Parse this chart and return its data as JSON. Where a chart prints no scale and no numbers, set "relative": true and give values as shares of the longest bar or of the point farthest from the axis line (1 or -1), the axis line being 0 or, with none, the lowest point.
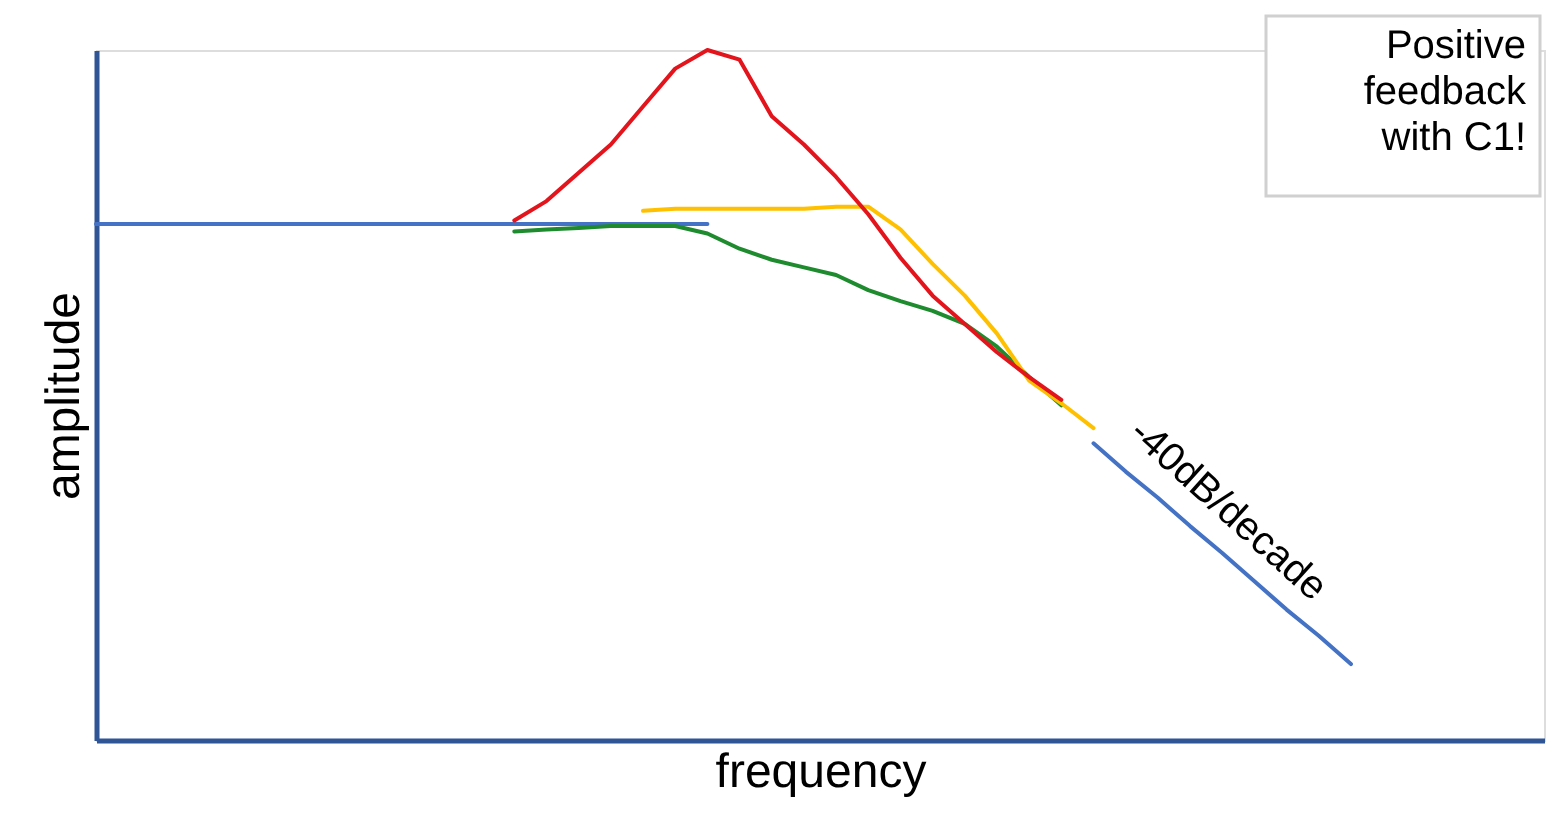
{
  "chart_data": {
    "type": "line",
    "relative": true,
    "xlabel": "frequency",
    "ylabel": "amplitude",
    "tick_labels": false,
    "categories": [
      null,
      null,
      null,
      null,
      null,
      null,
      null,
      null,
      null,
      null,
      null,
      null,
      null,
      null,
      null,
      null,
      null,
      null,
      null,
      null,
      null,
      null,
      null,
      null,
      null,
      null,
      null,
      null,
      null,
      null,
      null,
      null,
      null,
      null,
      null,
      null,
      null,
      null,
      null,
      null,
      null,
      null,
      null,
      null,
      null,
      null
    ],
    "series": [
      {
        "color": "#4472c4",
        "values": [
          0.748,
          0.748,
          0.748,
          0.748,
          0.748,
          0.748,
          0.748,
          0.748,
          0.748,
          0.748,
          0.748,
          0.748,
          0.748,
          0.748,
          0.748,
          0.748,
          0.748,
          0.748,
          0.748,
          0.748,
          null,
          null,
          null,
          null,
          null,
          null,
          null,
          null,
          null,
          null,
          null,
          0.43,
          0.389,
          0.351,
          0.31,
          0.271,
          0.23,
          0.189,
          0.151,
          0.11,
          null,
          null,
          null,
          null,
          null,
          null
        ]
      },
      {
        "color": "#1e8c2e",
        "values": [
          null,
          null,
          null,
          null,
          null,
          null,
          null,
          null,
          null,
          null,
          null,
          null,
          null,
          0.737,
          0.74,
          0.742,
          0.745,
          0.745,
          0.745,
          0.734,
          0.712,
          0.696,
          0.685,
          0.674,
          0.652,
          0.636,
          0.622,
          0.603,
          0.57,
          0.526,
          0.485,
          null,
          null,
          null,
          null,
          null,
          null,
          null,
          null,
          null,
          null,
          null,
          null,
          null,
          null,
          null
        ]
      },
      {
        "color": "#ffc000",
        "values": [
          null,
          null,
          null,
          null,
          null,
          null,
          null,
          null,
          null,
          null,
          null,
          null,
          null,
          null,
          null,
          null,
          null,
          0.767,
          0.77,
          0.77,
          0.77,
          0.77,
          0.77,
          0.773,
          0.773,
          0.74,
          0.69,
          0.644,
          0.589,
          0.521,
          0.488,
          0.452,
          null,
          null,
          null,
          null,
          null,
          null,
          null,
          null,
          null,
          null,
          null,
          null,
          null,
          null
        ]
      },
      {
        "color": "#e3141c",
        "values": [
          null,
          null,
          null,
          null,
          null,
          null,
          null,
          null,
          null,
          null,
          null,
          null,
          null,
          0.753,
          0.781,
          0.822,
          0.863,
          0.918,
          0.973,
          1.0,
          0.986,
          0.904,
          0.863,
          0.816,
          0.762,
          0.699,
          0.644,
          0.603,
          0.562,
          0.526,
          0.493,
          null,
          null,
          null,
          null,
          null,
          null,
          null,
          null,
          null,
          null,
          null,
          null,
          null,
          null,
          null
        ]
      }
    ],
    "annotations": [
      "Positive feedback with C1!",
      "-40dB/decade"
    ]
  }
}
